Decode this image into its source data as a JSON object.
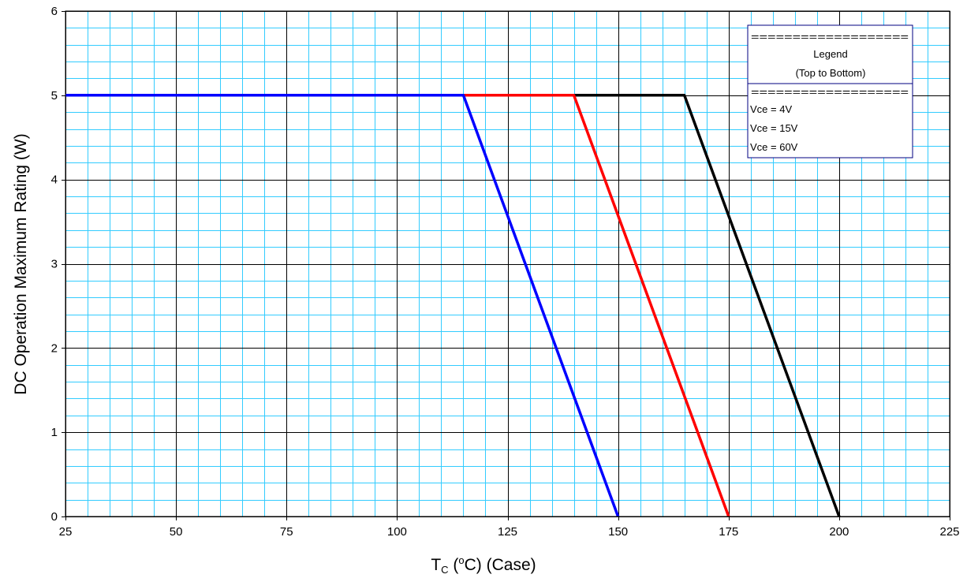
{
  "chart_data": {
    "type": "line",
    "xlabel": {
      "main": "T",
      "sub": "C",
      "pre": " (",
      "sup": "o",
      "post": "C) (Case)"
    },
    "ylabel": "DC Operation Maximum Rating (W)",
    "xlim": [
      25,
      225
    ],
    "ylim": [
      0,
      6
    ],
    "xticks": [
      25,
      50,
      75,
      100,
      125,
      150,
      175,
      200,
      225
    ],
    "yticks": [
      0,
      1,
      2,
      3,
      4,
      5,
      6
    ],
    "minor_x_step": 5,
    "minor_y_step": 0.2,
    "grid": {
      "major": true,
      "minor": true,
      "major_color": "#000000",
      "minor_color": "#33ccff"
    },
    "series": [
      {
        "name": "Vce = 60V",
        "color": "#000000",
        "x": [
          25,
          165,
          200
        ],
        "y": [
          5,
          5,
          0
        ]
      },
      {
        "name": "Vce = 15V",
        "color": "#ff0000",
        "x": [
          25,
          140,
          175
        ],
        "y": [
          5,
          5,
          0
        ]
      },
      {
        "name": "Vce = 4V",
        "color": "#0000ff",
        "x": [
          25,
          115,
          150
        ],
        "y": [
          5,
          5,
          0
        ]
      }
    ],
    "legend": {
      "placement": "top-right",
      "separator_top": "===================",
      "title_line1": "Legend",
      "title_line2": "(Top to Bottom)",
      "separator_bottom": "===================",
      "entries": [
        "Vce = 4V",
        "Vce = 15V",
        "Vce = 60V"
      ]
    }
  }
}
